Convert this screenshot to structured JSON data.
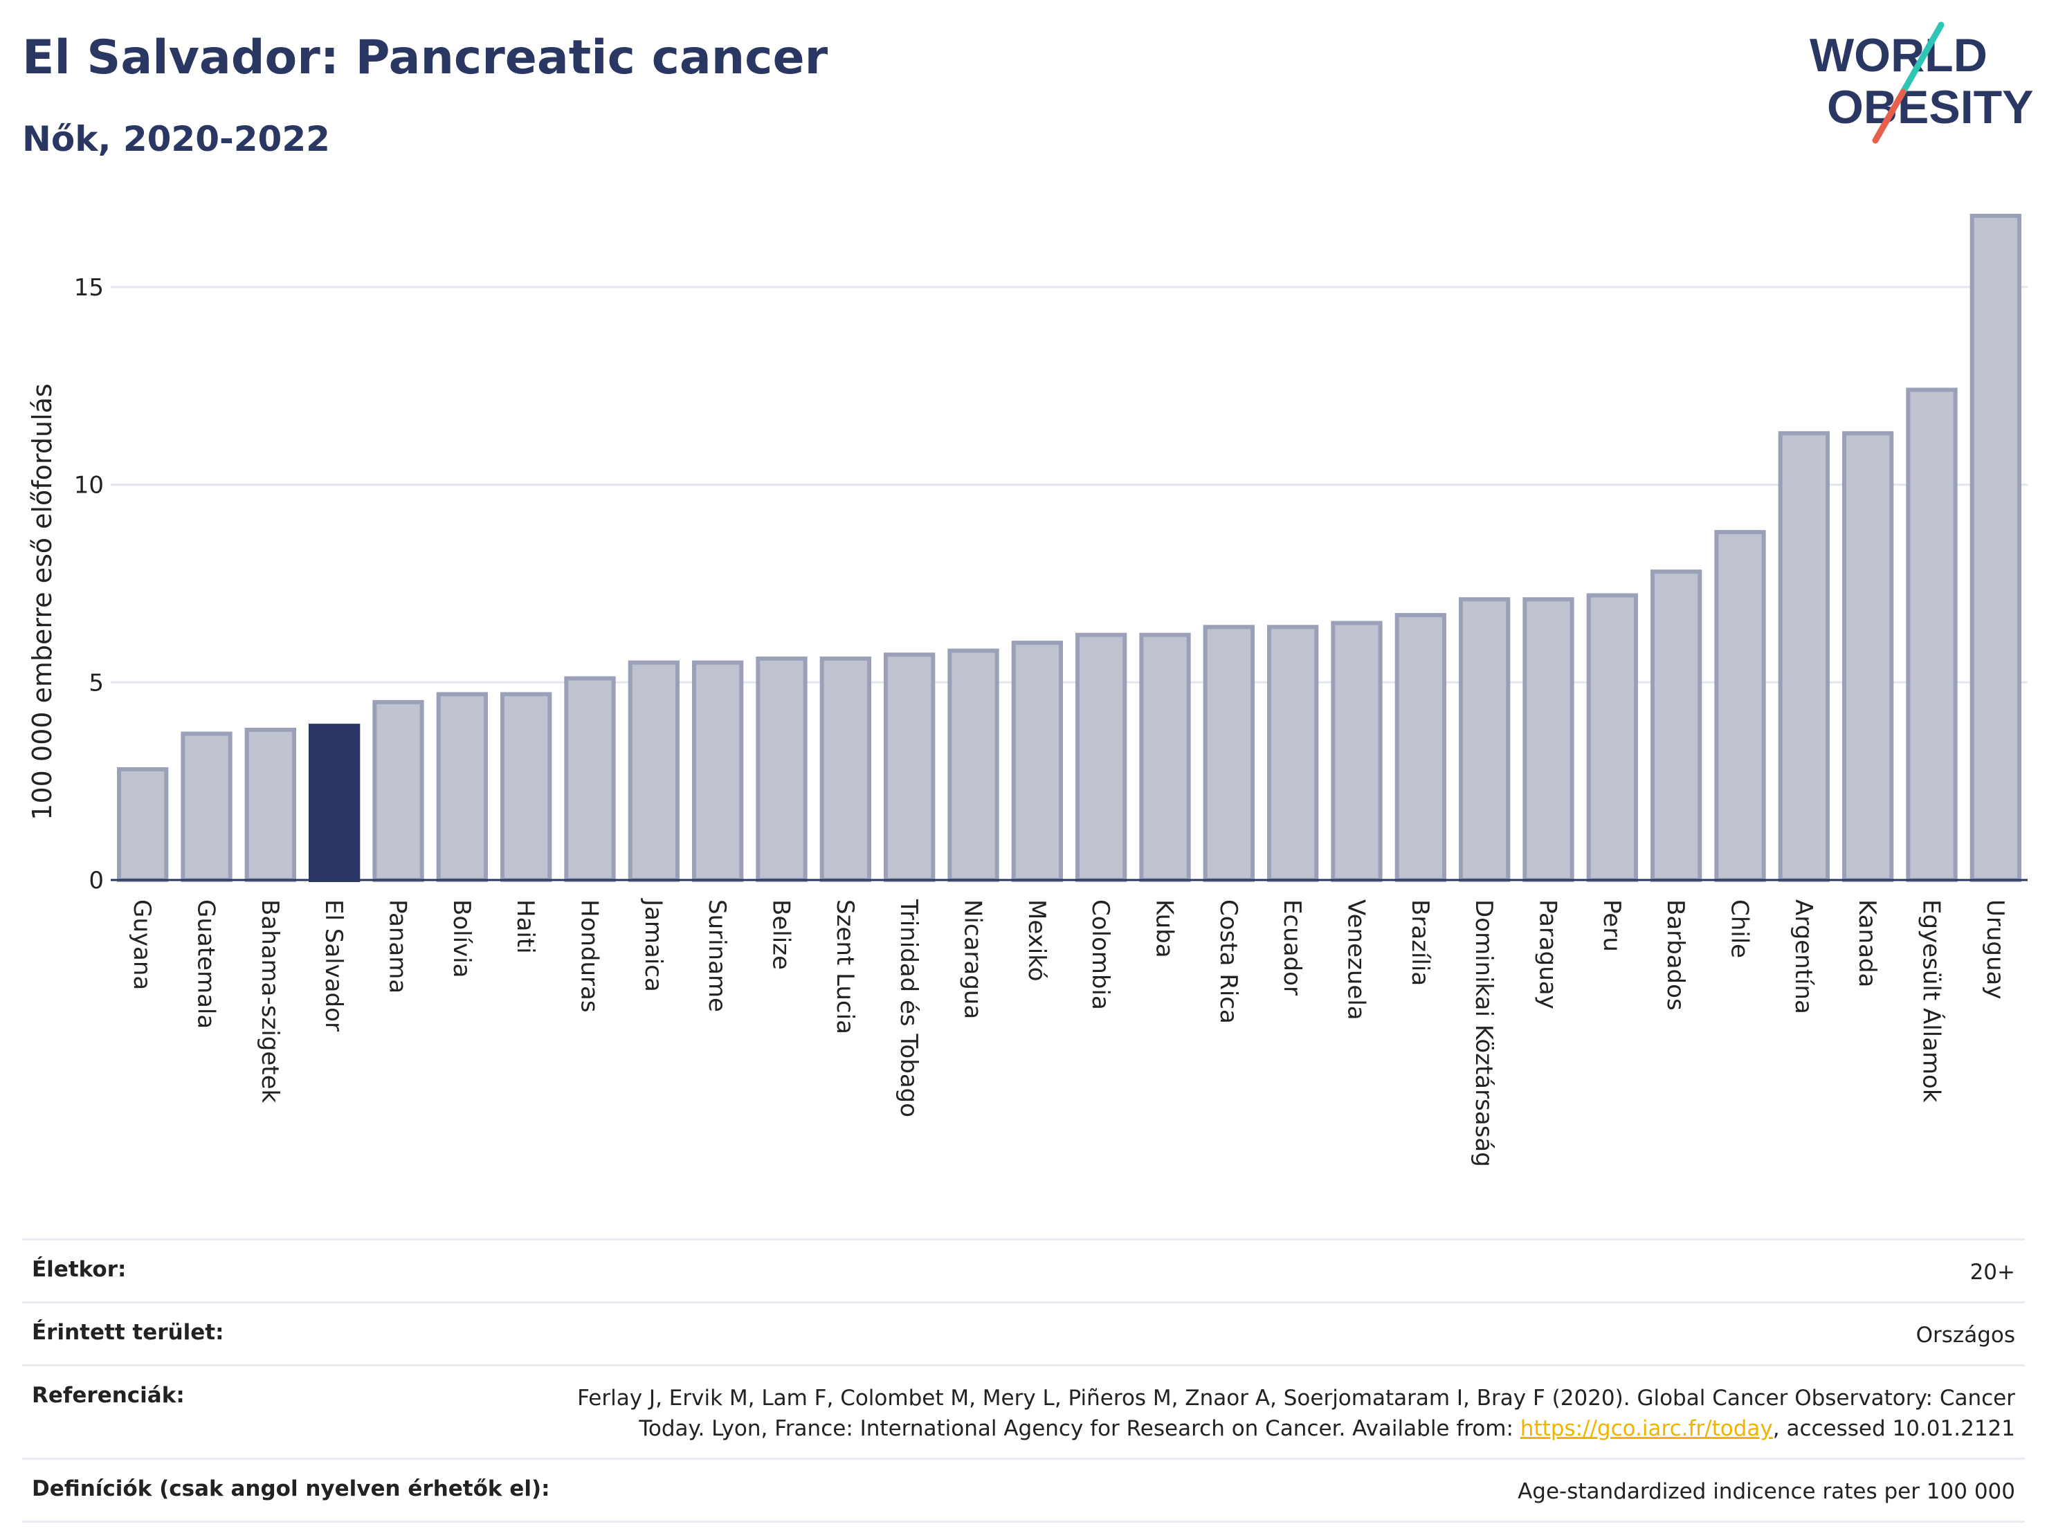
{
  "header": {
    "title": "El Salvador: Pancreatic cancer",
    "subtitle": "Nők, 2020-2022"
  },
  "logo": {
    "line1": "WORLD",
    "line2": "OBESITY",
    "text_color": "#2a3763",
    "accent_teal": "#2ec4b6",
    "accent_red": "#e8604c"
  },
  "colors": {
    "bar_default": "#bfc3d0",
    "bar_stroke": "#9aa0b8",
    "bar_highlight": "#2a3763",
    "grid": "#e3e6ee",
    "axis": "#2a3763"
  },
  "chart_data": {
    "type": "bar",
    "ylabel": "100 000 emberre eső előfordulás",
    "ylim": [
      0,
      17.5
    ],
    "yticks": [
      0,
      5,
      10,
      15
    ],
    "grid": true,
    "highlight": "El Salvador",
    "categories": [
      "Guyana",
      "Guatemala",
      "Bahama-szigetek",
      "El Salvador",
      "Panama",
      "Bolívia",
      "Haiti",
      "Honduras",
      "Jamaica",
      "Suriname",
      "Belize",
      "Szent Lucia",
      "Trinidad és Tobago",
      "Nicaragua",
      "Mexikó",
      "Colombia",
      "Kuba",
      "Costa Rica",
      "Ecuador",
      "Venezuela",
      "Brazília",
      "Dominikai Köztársaság",
      "Paraguay",
      "Peru",
      "Barbados",
      "Chile",
      "Argentína",
      "Kanada",
      "Egyesült Államok",
      "Uruguay"
    ],
    "values": [
      2.8,
      3.7,
      3.8,
      3.9,
      4.5,
      4.7,
      4.7,
      5.1,
      5.5,
      5.5,
      5.6,
      5.6,
      5.7,
      5.8,
      6.0,
      6.2,
      6.2,
      6.4,
      6.4,
      6.5,
      6.7,
      7.1,
      7.1,
      7.2,
      7.8,
      8.8,
      11.3,
      11.3,
      12.4,
      16.8
    ]
  },
  "info": {
    "age_label": "Életkor:",
    "age_value": "20+",
    "area_label": "Érintett terület:",
    "area_value": "Országos",
    "ref_label": "Referenciák:",
    "ref_text_1": "Ferlay J, Ervik M, Lam F, Colombet M, Mery L, Piñeros M, Znaor A, Soerjomataram I, Bray F (2020). Global Cancer Observatory: Cancer",
    "ref_text_2": "Today. Lyon, France: International Agency for Research on Cancer. Available from: ",
    "ref_link": "https://gco.iarc.fr/today",
    "ref_text_3": ", accessed 10.01.2121",
    "def_label": "Definíciók (csak angol nyelven érhetők el):",
    "def_value": "Age-standardized indicence rates per 100 000"
  }
}
